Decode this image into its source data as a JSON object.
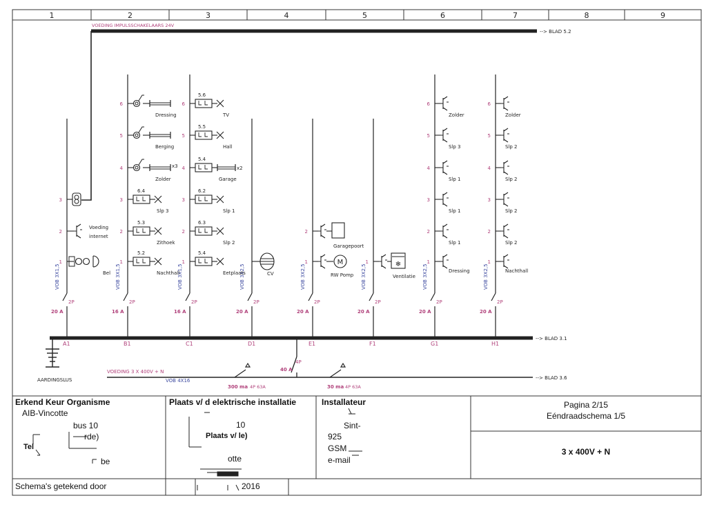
{
  "grid": {
    "columns": [
      "1",
      "2",
      "3",
      "4",
      "5",
      "6",
      "7",
      "8",
      "9"
    ]
  },
  "supply": {
    "label": "VOEDING IMPULSSCHAKELAARS 24V",
    "ref": "--> BLAD 5.2"
  },
  "busbar": {
    "ref": "--> BLAD 3.1",
    "earth_label": "AARDINGSLUS"
  },
  "feeder": {
    "label": "VOEDING 3 X 400V + N",
    "cable": "VOB 4X16",
    "ref": "--> BLAD 3.6",
    "main_switch": "40 A",
    "main_poles": "4P",
    "diff_1_current": "300 ma",
    "diff_1_type": "4P 63A",
    "diff_2_current": "30 ma",
    "diff_2_type": "4P 63A"
  },
  "circuits": [
    {
      "id": "A1",
      "rating": "20 A",
      "poles": "2P",
      "cable": "VOB 3X1,5"
    },
    {
      "id": "B1",
      "rating": "16 A",
      "poles": "2P",
      "cable": "VOB 3X1,5"
    },
    {
      "id": "C1",
      "rating": "16 A",
      "poles": "2P",
      "cable": "VOB 3X1,5"
    },
    {
      "id": "D1",
      "rating": "20 A",
      "poles": "2P",
      "cable": "VOB 3X2,5"
    },
    {
      "id": "E1",
      "rating": "20 A",
      "poles": "2P",
      "cable": "VOB 3X2,5"
    },
    {
      "id": "F1",
      "rating": "20 A",
      "poles": "2P",
      "cable": "VOB 3X2,5"
    },
    {
      "id": "G1",
      "rating": "20 A",
      "poles": "2P",
      "cable": "VOB 3X2,5"
    },
    {
      "id": "H1",
      "rating": "20 A",
      "poles": "2P",
      "cable": "VOB 3X2,5"
    }
  ],
  "loads": {
    "a": [
      {
        "n": "1",
        "label": "Bel"
      },
      {
        "n": "2",
        "label": "Voeding",
        "label2": "internet"
      },
      {
        "n": "3",
        "label": ""
      }
    ],
    "b": [
      {
        "n": "1",
        "ref": "5.2",
        "label": "Nachthall"
      },
      {
        "n": "2",
        "ref": "5.3",
        "label": "Zithoek"
      },
      {
        "n": "3",
        "ref": "6.4",
        "label": "Slp 3"
      },
      {
        "n": "4",
        "label": "Zolder",
        "mult": "x3"
      },
      {
        "n": "5",
        "label": "Berging"
      },
      {
        "n": "6",
        "label": "Dressing"
      }
    ],
    "c": [
      {
        "n": "1",
        "ref": "5.4",
        "label": "Eetplaats"
      },
      {
        "n": "2",
        "ref": "6.3",
        "label": "Slp 2"
      },
      {
        "n": "3",
        "ref": "6.2",
        "label": "Slp 1"
      },
      {
        "n": "4",
        "ref": "5.4",
        "label": "Garage",
        "mult": "x2"
      },
      {
        "n": "5",
        "ref": "5.5",
        "label": "Hall"
      },
      {
        "n": "6",
        "ref": "5.6",
        "label": "TV"
      }
    ],
    "d": [
      {
        "label": "CV"
      }
    ],
    "e": [
      {
        "n": "1",
        "label": "RW Pomp",
        "motor": "M"
      },
      {
        "n": "2",
        "label": "Garagepoort"
      }
    ],
    "f": [
      {
        "n": "1",
        "label": "Ventilatie"
      }
    ],
    "g": [
      {
        "n": "1",
        "label": "Dressing"
      },
      {
        "n": "2",
        "label": "Slp 1"
      },
      {
        "n": "3",
        "label": "Slp 1"
      },
      {
        "n": "4",
        "label": "Slp 1"
      },
      {
        "n": "5",
        "label": "Slp 3"
      },
      {
        "n": "6",
        "label": "Zolder"
      }
    ],
    "h": [
      {
        "n": "1",
        "label": "Nachthall"
      },
      {
        "n": "2",
        "label": "Slp 2"
      },
      {
        "n": "3",
        "label": "Slp 2"
      },
      {
        "n": "4",
        "label": "Slp 2"
      },
      {
        "n": "5",
        "label": "Slp 2"
      },
      {
        "n": "6",
        "label": "Zolder"
      }
    ]
  },
  "titleblock": {
    "org_title": "Erkend Keur Organisme",
    "org_name": "AIB-Vincotte",
    "org_line2": "bus 10",
    "org_line3": "rde)",
    "org_tel": "Tel",
    "org_mail": "be",
    "install_title": "Plaats v/ d elektrische installatie",
    "install_line1": "10",
    "install_line2": "Plaats v/ le)",
    "install_line3": "otte",
    "installer_title": "Installateur",
    "installer_line1": "Sint-",
    "installer_line2": "925",
    "installer_gsm": "GSM",
    "installer_mail": "e-mail",
    "page": "Pagina 2/15",
    "schema_name": "Eéndraadschema 1/5",
    "network": "3 x 400V + N",
    "drawn_by": "Schema's getekend door",
    "date": "2016"
  }
}
